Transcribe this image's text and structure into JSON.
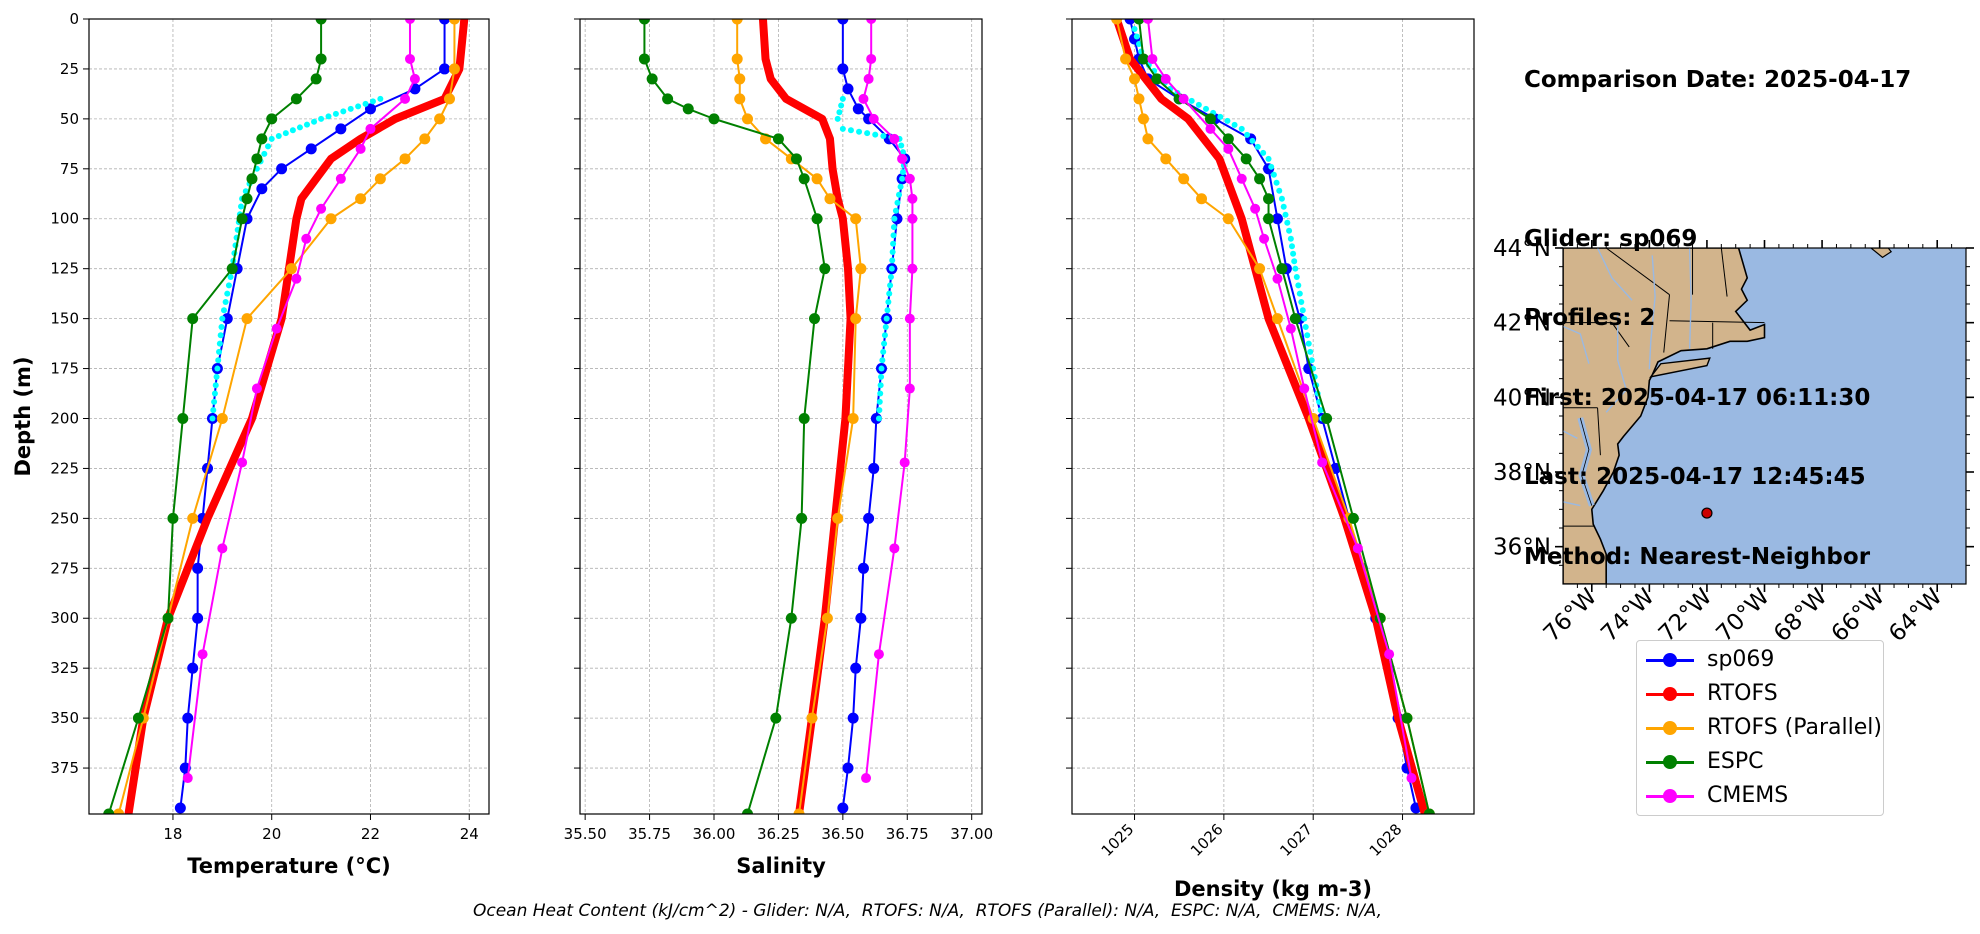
{
  "info": {
    "date_line": "Comparison Date: 2025-04-17",
    "glider_line": "Glider: sp069",
    "profiles_line": "Profiles: 2",
    "first_line": "First: 2025-04-17 06:11:30",
    "last_line": "Last: 2025-04-17 12:45:45",
    "method_line": "Method: Nearest-Neighbor"
  },
  "footer": "Ocean Heat Content (kJ/cm^2) - Glider: N/A,  RTOFS: N/A,  RTOFS (Parallel): N/A,  ESPC: N/A,  CMEMS: N/A,",
  "legend": [
    {
      "label": "sp069",
      "color": "#0000ff"
    },
    {
      "label": "RTOFS",
      "color": "#ff0000"
    },
    {
      "label": "RTOFS (Parallel)",
      "color": "#ffa500"
    },
    {
      "label": "ESPC",
      "color": "#008000"
    },
    {
      "label": "CMEMS",
      "color": "#ff00ff"
    }
  ],
  "colors": {
    "sp069": "#0000ff",
    "sp069_alt": "#00ffff",
    "RTOFS": "#ff0000",
    "RTOFS (Parallel)": "#ffa500",
    "ESPC": "#008000",
    "CMEMS": "#ff00ff",
    "land": "#d2b48c",
    "ocean": "#9ab9e2",
    "marker": "#cc0000"
  },
  "chart_data": [
    {
      "type": "line",
      "xlabel": "Temperature (°C)",
      "ylabel": "Depth (m)",
      "xlim": [
        16.3,
        24.4
      ],
      "ylim": [
        398,
        0
      ],
      "xticks": [
        18,
        20,
        22,
        24
      ],
      "yticks": [
        0,
        25,
        50,
        75,
        100,
        125,
        150,
        175,
        200,
        225,
        250,
        275,
        300,
        325,
        350,
        375
      ],
      "grid": true,
      "series": [
        {
          "name": "sp069",
          "depth": [
            0,
            25,
            35,
            45,
            55,
            65,
            75,
            85,
            100,
            125,
            150,
            175,
            200,
            225,
            250,
            275,
            300,
            325,
            350,
            375,
            395
          ],
          "values": [
            23.5,
            23.5,
            22.9,
            22.0,
            21.4,
            20.8,
            20.2,
            19.8,
            19.5,
            19.3,
            19.1,
            18.9,
            18.8,
            18.7,
            18.6,
            18.5,
            18.5,
            18.4,
            18.3,
            18.25,
            18.15
          ]
        },
        {
          "name": "sp069 (profile 2)",
          "depth": [
            40,
            50,
            60,
            75,
            90,
            125,
            150,
            175,
            200
          ],
          "values": [
            22.2,
            21.0,
            20.0,
            19.7,
            19.4,
            19.2,
            19.0,
            18.9,
            18.8
          ]
        },
        {
          "name": "RTOFS",
          "depth": [
            0,
            25,
            40,
            50,
            60,
            70,
            80,
            90,
            100,
            150,
            200,
            250,
            300,
            350,
            398
          ],
          "values": [
            23.9,
            23.8,
            23.5,
            22.5,
            21.8,
            21.2,
            20.9,
            20.6,
            20.5,
            20.2,
            19.6,
            18.7,
            17.9,
            17.4,
            17.1
          ]
        },
        {
          "name": "RTOFS (Parallel)",
          "depth": [
            0,
            25,
            40,
            50,
            60,
            70,
            80,
            90,
            100,
            125,
            150,
            200,
            250,
            300,
            350,
            398
          ],
          "values": [
            23.7,
            23.7,
            23.6,
            23.4,
            23.1,
            22.7,
            22.2,
            21.8,
            21.2,
            20.4,
            19.5,
            19.0,
            18.4,
            17.9,
            17.4,
            16.9
          ]
        },
        {
          "name": "ESPC",
          "depth": [
            0,
            20,
            30,
            40,
            50,
            60,
            70,
            80,
            90,
            100,
            125,
            150,
            200,
            250,
            300,
            350,
            398
          ],
          "values": [
            21.0,
            21.0,
            20.9,
            20.5,
            20.0,
            19.8,
            19.7,
            19.6,
            19.5,
            19.4,
            19.2,
            18.4,
            18.2,
            18.0,
            17.9,
            17.3,
            16.7
          ]
        },
        {
          "name": "CMEMS",
          "depth": [
            0,
            20,
            30,
            40,
            55,
            65,
            80,
            95,
            110,
            130,
            155,
            185,
            222,
            265,
            318,
            380
          ],
          "values": [
            22.8,
            22.8,
            22.9,
            22.7,
            22.0,
            21.8,
            21.4,
            21.0,
            20.7,
            20.5,
            20.1,
            19.7,
            19.4,
            19.0,
            18.6,
            18.3
          ]
        }
      ]
    },
    {
      "type": "line",
      "xlabel": "Salinity",
      "xlim": [
        35.48,
        37.04
      ],
      "ylim": [
        398,
        0
      ],
      "xticks": [
        35.5,
        35.75,
        36.0,
        36.25,
        36.5,
        36.75,
        37.0
      ],
      "xticklabels": [
        "35.50",
        "35.75",
        "36.00",
        "36.25",
        "36.50",
        "36.75",
        "37.00"
      ],
      "grid": true,
      "series": [
        {
          "name": "sp069",
          "depth": [
            0,
            25,
            35,
            45,
            50,
            60,
            70,
            80,
            100,
            125,
            150,
            175,
            200,
            225,
            250,
            275,
            300,
            325,
            350,
            375,
            395
          ],
          "values": [
            36.5,
            36.5,
            36.52,
            36.56,
            36.6,
            36.68,
            36.74,
            36.73,
            36.71,
            36.69,
            36.67,
            36.65,
            36.63,
            36.62,
            36.6,
            36.58,
            36.57,
            36.55,
            36.54,
            36.52,
            36.5
          ]
        },
        {
          "name": "sp069 (profile 2)",
          "depth": [
            40,
            50,
            55,
            60,
            70,
            80,
            100,
            125,
            150,
            175,
            200
          ],
          "values": [
            36.5,
            36.48,
            36.5,
            36.72,
            36.74,
            36.73,
            36.7,
            36.69,
            36.67,
            36.65,
            36.64
          ]
        },
        {
          "name": "RTOFS",
          "depth": [
            0,
            20,
            30,
            40,
            50,
            60,
            75,
            90,
            100,
            125,
            150,
            200,
            250,
            300,
            350,
            398
          ],
          "values": [
            36.19,
            36.2,
            36.22,
            36.28,
            36.42,
            36.45,
            36.46,
            36.48,
            36.5,
            36.52,
            36.53,
            36.51,
            36.47,
            36.43,
            36.38,
            36.33
          ]
        },
        {
          "name": "RTOFS (Parallel)",
          "depth": [
            0,
            20,
            30,
            40,
            50,
            60,
            70,
            80,
            90,
            100,
            125,
            150,
            200,
            250,
            300,
            350,
            398
          ],
          "values": [
            36.09,
            36.09,
            36.1,
            36.1,
            36.13,
            36.2,
            36.3,
            36.4,
            36.45,
            36.55,
            36.57,
            36.55,
            36.54,
            36.48,
            36.44,
            36.38,
            36.33
          ]
        },
        {
          "name": "ESPC",
          "depth": [
            0,
            20,
            30,
            40,
            45,
            50,
            60,
            70,
            80,
            100,
            125,
            150,
            200,
            250,
            300,
            350,
            398
          ],
          "values": [
            35.73,
            35.73,
            35.76,
            35.82,
            35.9,
            36.0,
            36.25,
            36.32,
            36.35,
            36.4,
            36.43,
            36.39,
            36.35,
            36.34,
            36.3,
            36.24,
            36.13
          ]
        },
        {
          "name": "CMEMS",
          "depth": [
            0,
            20,
            30,
            40,
            50,
            60,
            70,
            80,
            90,
            100,
            125,
            150,
            185,
            222,
            265,
            318,
            380
          ],
          "values": [
            36.61,
            36.61,
            36.6,
            36.58,
            36.62,
            36.7,
            36.73,
            36.76,
            36.77,
            36.77,
            36.77,
            36.76,
            36.76,
            36.74,
            36.7,
            36.64,
            36.59
          ]
        }
      ]
    },
    {
      "type": "line",
      "xlabel": "Density (kg m-3)",
      "xlim": [
        1024.3,
        1028.8
      ],
      "ylim": [
        398,
        0
      ],
      "xticks": [
        1025,
        1026,
        1027,
        1028
      ],
      "grid": true,
      "series": [
        {
          "name": "sp069",
          "depth": [
            0,
            10,
            20,
            30,
            40,
            50,
            60,
            75,
            100,
            125,
            150,
            175,
            200,
            225,
            250,
            275,
            300,
            325,
            350,
            375,
            395
          ],
          "values": [
            1024.95,
            1025.0,
            1025.05,
            1025.15,
            1025.5,
            1025.9,
            1026.3,
            1026.5,
            1026.6,
            1026.7,
            1026.85,
            1026.95,
            1027.1,
            1027.25,
            1027.4,
            1027.55,
            1027.7,
            1027.85,
            1027.95,
            1028.05,
            1028.15
          ]
        },
        {
          "name": "sp069 (profile 2)",
          "depth": [
            5,
            20,
            35,
            45,
            55,
            70,
            90,
            110,
            125,
            150,
            175,
            200
          ],
          "values": [
            1025.0,
            1025.1,
            1025.4,
            1025.8,
            1026.2,
            1026.5,
            1026.65,
            1026.75,
            1026.8,
            1026.9,
            1027.0,
            1027.1
          ]
        },
        {
          "name": "RTOFS",
          "depth": [
            0,
            20,
            40,
            50,
            70,
            100,
            150,
            200,
            250,
            300,
            350,
            398
          ],
          "values": [
            1024.8,
            1024.95,
            1025.3,
            1025.6,
            1025.95,
            1026.2,
            1026.5,
            1026.95,
            1027.35,
            1027.7,
            1027.95,
            1028.25
          ]
        },
        {
          "name": "RTOFS (Parallel)",
          "depth": [
            0,
            20,
            30,
            40,
            50,
            60,
            70,
            80,
            90,
            100,
            125,
            150,
            200,
            250,
            300,
            350,
            398
          ],
          "values": [
            1024.8,
            1024.9,
            1025.0,
            1025.05,
            1025.1,
            1025.15,
            1025.35,
            1025.55,
            1025.75,
            1026.05,
            1026.4,
            1026.6,
            1027.0,
            1027.4,
            1027.75,
            1028.05,
            1028.3
          ]
        },
        {
          "name": "ESPC",
          "depth": [
            0,
            20,
            30,
            40,
            50,
            60,
            70,
            80,
            90,
            100,
            125,
            150,
            200,
            250,
            300,
            350,
            398
          ],
          "values": [
            1025.05,
            1025.1,
            1025.25,
            1025.5,
            1025.85,
            1026.05,
            1026.25,
            1026.4,
            1026.5,
            1026.5,
            1026.65,
            1026.8,
            1027.15,
            1027.45,
            1027.75,
            1028.05,
            1028.3
          ]
        },
        {
          "name": "CMEMS",
          "depth": [
            0,
            20,
            30,
            40,
            55,
            65,
            80,
            95,
            110,
            130,
            155,
            185,
            222,
            265,
            318,
            380
          ],
          "values": [
            1025.15,
            1025.2,
            1025.35,
            1025.55,
            1025.85,
            1026.05,
            1026.2,
            1026.35,
            1026.45,
            1026.6,
            1026.75,
            1026.9,
            1027.1,
            1027.5,
            1027.85,
            1028.1
          ]
        }
      ]
    },
    {
      "type": "map",
      "lon_range": [
        -77.0,
        -63.0
      ],
      "lat_range": [
        35.0,
        44.0
      ],
      "xticks": [
        -76,
        -74,
        -72,
        -70,
        -68,
        -66,
        -64
      ],
      "xticklabels": [
        "76°W",
        "74°W",
        "72°W",
        "70°W",
        "68°W",
        "66°W",
        "64°W"
      ],
      "yticks": [
        36,
        38,
        40,
        42,
        44
      ],
      "yticklabels": [
        "36°N",
        "38°N",
        "40°N",
        "42°N",
        "44°N"
      ],
      "glider_location": {
        "lon": -72.0,
        "lat": 36.9
      }
    }
  ]
}
